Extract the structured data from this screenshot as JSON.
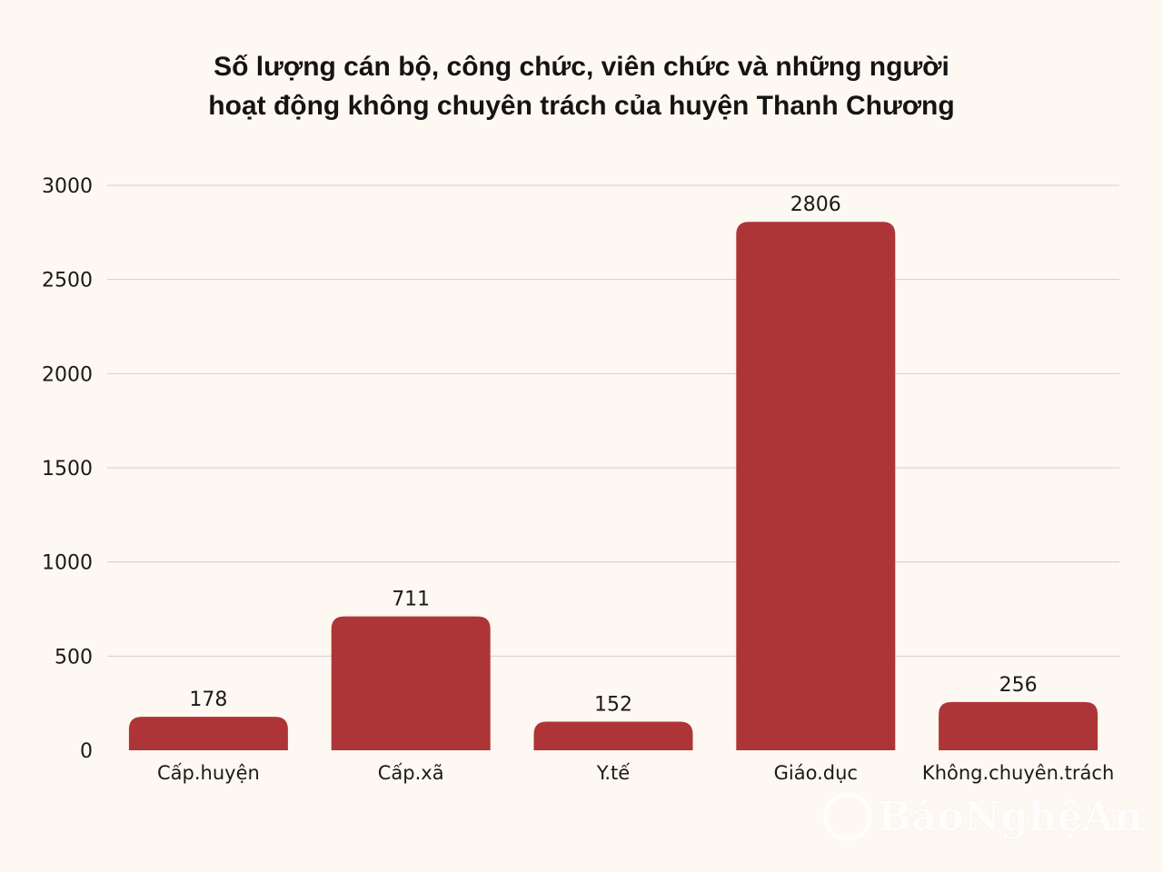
{
  "title_line1": "Số lượng cán bộ, công chức, viên chức và những người",
  "title_line2": "hoạt động không chuyên trách của huyện Thanh Chương",
  "watermark_text": "BáoNghệAn",
  "colors": {
    "bar": "#ae3537",
    "grid": "#cfcfcf",
    "text": "#1a1a1a",
    "background": "#fdf8f1"
  },
  "chart_data": {
    "type": "bar",
    "title": "Số lượng cán bộ, công chức, viên chức và những người hoạt động không chuyên trách của huyện Thanh Chương",
    "categories": [
      "Cấp.huyện",
      "Cấp.xã",
      "Y.tế",
      "Giáo.dục",
      "Không.chuyên.trách"
    ],
    "values": [
      178,
      711,
      152,
      2806,
      256
    ],
    "data_labels": [
      "178",
      "711",
      "152",
      "2806",
      "256"
    ],
    "yticks": [
      "0",
      "500",
      "1000",
      "1500",
      "2000",
      "2500",
      "3000"
    ],
    "ylim": [
      0,
      3000
    ],
    "grid": true,
    "legend": "none"
  }
}
